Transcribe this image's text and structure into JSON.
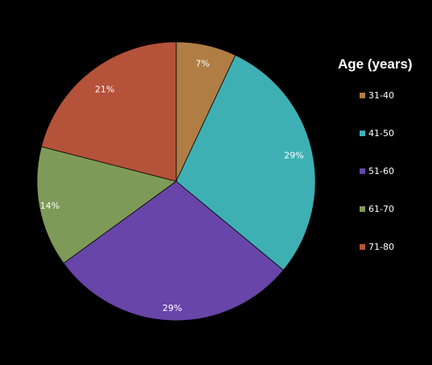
{
  "chart_data": {
    "type": "pie",
    "legend_title": "Age (years)",
    "legend_position": "right",
    "categories": [
      "31-40",
      "41-50",
      "51-60",
      "61-70",
      "71-80"
    ],
    "values": [
      7,
      29,
      29,
      14,
      21
    ],
    "data_labels": [
      "7%",
      "29%",
      "29%",
      "14%",
      "21%"
    ],
    "colors": [
      "#B07D45",
      "#3EB0B4",
      "#6845A8",
      "#7E9A58",
      "#B5523A"
    ]
  }
}
